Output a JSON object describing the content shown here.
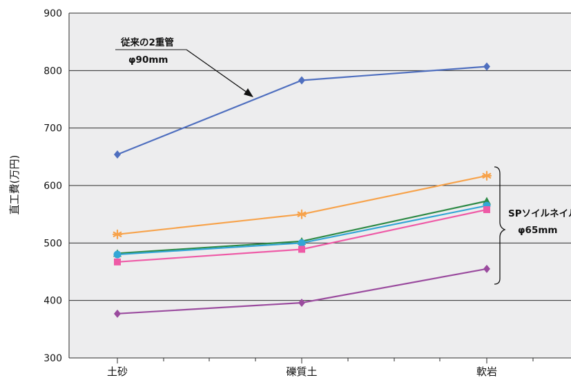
{
  "chart_data": {
    "type": "line",
    "title": "",
    "xlabel": "",
    "ylabel": "直工費(万円)",
    "categories": [
      "土砂",
      "礫質土",
      "軟岩"
    ],
    "ylim": [
      300,
      900
    ],
    "yticks": [
      300,
      400,
      500,
      600,
      700,
      800,
      900
    ],
    "grid": true,
    "series": [
      {
        "values": [
          654,
          783,
          807
        ],
        "color": "#4f6fbf",
        "marker": "diamond"
      },
      {
        "values": [
          515,
          550,
          617
        ],
        "color": "#f7a24a",
        "marker": "asterisk"
      },
      {
        "values": [
          482,
          503,
          573
        ],
        "color": "#2e8a46",
        "marker": "triangle"
      },
      {
        "values": [
          480,
          500,
          565
        ],
        "color": "#33a6d6",
        "marker": "circle"
      },
      {
        "values": [
          467,
          489,
          558
        ],
        "color": "#ee5aa6",
        "marker": "square"
      },
      {
        "values": [
          377,
          396,
          455
        ],
        "color": "#9a4b9e",
        "marker": "diamond"
      }
    ],
    "annotations": [
      {
        "line1": "従来の2重管",
        "line2": "φ90mm"
      },
      {
        "line1": "SPソイルネイル",
        "line2": "φ65mm"
      }
    ]
  }
}
